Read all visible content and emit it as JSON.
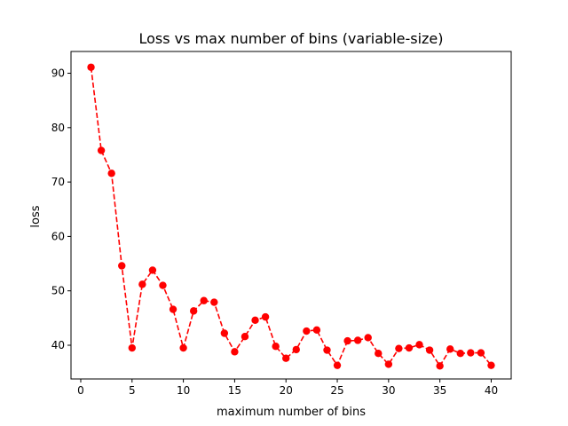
{
  "chart_data": {
    "type": "line",
    "title": "Loss vs max number of bins (variable-size)",
    "xlabel": "maximum number of bins",
    "ylabel": "loss",
    "xlim": [
      -0.95,
      41.95
    ],
    "ylim": [
      33.8,
      94.0
    ],
    "xticks": [
      0,
      5,
      10,
      15,
      20,
      25,
      30,
      35,
      40
    ],
    "yticks": [
      40,
      50,
      60,
      70,
      80,
      90
    ],
    "grid": false,
    "legend": "none",
    "series": [
      {
        "color": "#ff0000",
        "line_style": "dashed",
        "marker": "circle",
        "x": [
          1,
          2,
          3,
          4,
          5,
          6,
          7,
          8,
          9,
          10,
          11,
          12,
          13,
          14,
          15,
          16,
          17,
          18,
          19,
          20,
          21,
          22,
          23,
          24,
          25,
          26,
          27,
          28,
          29,
          30,
          31,
          32,
          33,
          34,
          35,
          36,
          37,
          38,
          39,
          40
        ],
        "y": [
          91.1,
          75.8,
          71.6,
          54.6,
          39.5,
          51.2,
          53.8,
          51.0,
          46.6,
          39.5,
          46.3,
          48.2,
          47.9,
          42.2,
          38.8,
          41.6,
          44.6,
          45.2,
          39.8,
          37.6,
          39.2,
          42.6,
          42.8,
          39.1,
          36.3,
          40.8,
          40.9,
          41.4,
          38.5,
          36.5,
          39.4,
          39.5,
          40.1,
          39.1,
          36.2,
          39.3,
          38.5,
          38.6,
          38.6,
          36.3
        ]
      }
    ]
  }
}
